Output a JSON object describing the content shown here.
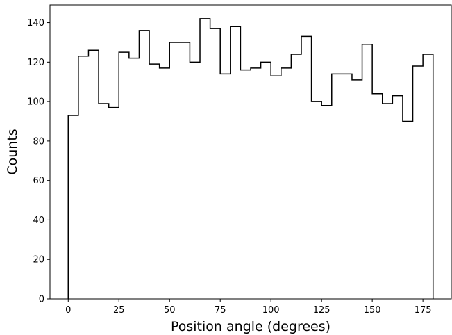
{
  "chart_data": {
    "type": "histogram",
    "histtype": "step",
    "bin_width": 5,
    "bin_edges_start": 0,
    "bin_edges_end": 180,
    "bins": [
      {
        "start": 0,
        "end": 5,
        "count": 93
      },
      {
        "start": 5,
        "end": 10,
        "count": 123
      },
      {
        "start": 10,
        "end": 15,
        "count": 126
      },
      {
        "start": 15,
        "end": 20,
        "count": 99
      },
      {
        "start": 20,
        "end": 25,
        "count": 97
      },
      {
        "start": 25,
        "end": 30,
        "count": 125
      },
      {
        "start": 30,
        "end": 35,
        "count": 122
      },
      {
        "start": 35,
        "end": 40,
        "count": 136
      },
      {
        "start": 40,
        "end": 45,
        "count": 119
      },
      {
        "start": 45,
        "end": 50,
        "count": 117
      },
      {
        "start": 50,
        "end": 55,
        "count": 130
      },
      {
        "start": 55,
        "end": 60,
        "count": 130
      },
      {
        "start": 60,
        "end": 65,
        "count": 120
      },
      {
        "start": 65,
        "end": 70,
        "count": 142
      },
      {
        "start": 70,
        "end": 75,
        "count": 137
      },
      {
        "start": 75,
        "end": 80,
        "count": 114
      },
      {
        "start": 80,
        "end": 85,
        "count": 138
      },
      {
        "start": 85,
        "end": 90,
        "count": 116
      },
      {
        "start": 90,
        "end": 95,
        "count": 117
      },
      {
        "start": 95,
        "end": 100,
        "count": 120
      },
      {
        "start": 100,
        "end": 105,
        "count": 113
      },
      {
        "start": 105,
        "end": 110,
        "count": 117
      },
      {
        "start": 110,
        "end": 115,
        "count": 124
      },
      {
        "start": 115,
        "end": 120,
        "count": 133
      },
      {
        "start": 120,
        "end": 125,
        "count": 100
      },
      {
        "start": 125,
        "end": 130,
        "count": 98
      },
      {
        "start": 130,
        "end": 135,
        "count": 114
      },
      {
        "start": 135,
        "end": 140,
        "count": 114
      },
      {
        "start": 140,
        "end": 145,
        "count": 111
      },
      {
        "start": 145,
        "end": 150,
        "count": 129
      },
      {
        "start": 150,
        "end": 155,
        "count": 104
      },
      {
        "start": 155,
        "end": 160,
        "count": 99
      },
      {
        "start": 160,
        "end": 165,
        "count": 103
      },
      {
        "start": 165,
        "end": 170,
        "count": 90
      },
      {
        "start": 170,
        "end": 175,
        "count": 118
      },
      {
        "start": 175,
        "end": 180,
        "count": 124
      }
    ],
    "xlabel": "Position angle (degrees)",
    "ylabel": "Counts",
    "xlim": [
      -9,
      189
    ],
    "ylim": [
      0,
      149
    ],
    "x_ticks": [
      0,
      25,
      50,
      75,
      100,
      125,
      150,
      175
    ],
    "y_ticks": [
      0,
      20,
      40,
      60,
      80,
      100,
      120,
      140
    ],
    "grid": false,
    "line_color": "#000000"
  }
}
